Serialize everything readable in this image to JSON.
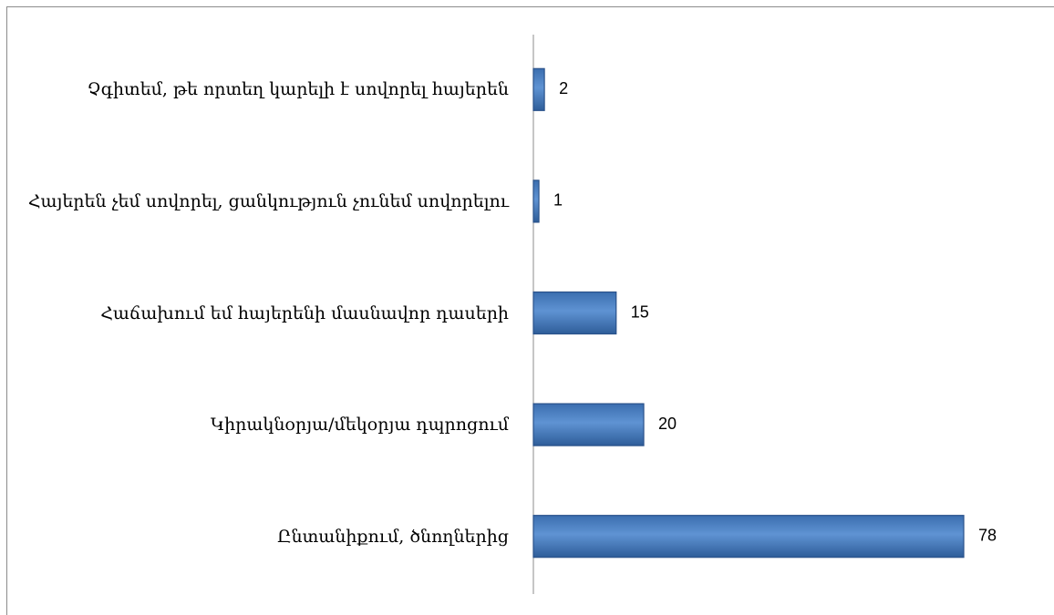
{
  "chart_data": {
    "type": "bar",
    "orientation": "horizontal",
    "categories": [
      "Չգիտեմ, թե որտեղ կարելի է սովորել հայերեն",
      "Հայերեն չեմ սովորել, ցանկություն չունեմ սովորելու",
      "Հաճախում եմ հայերենի մասնավոր դասերի",
      "Կիրակնօրյա/մեկօրյա դպրոցում",
      "Ընտանիքում, ծնողներից"
    ],
    "values": [
      2,
      1,
      15,
      20,
      78
    ],
    "color": "#4f81bd"
  }
}
